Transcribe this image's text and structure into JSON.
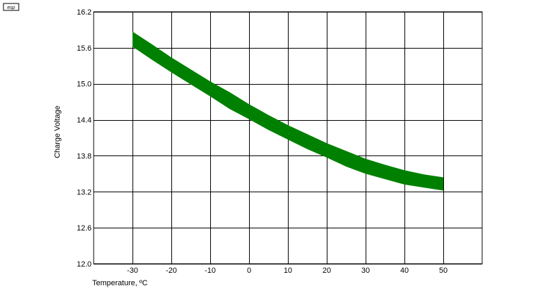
{
  "logo": {
    "text": "esp"
  },
  "chart_data": {
    "type": "area",
    "title": "",
    "xlabel": "Temperature, ºC",
    "ylabel": "Charge Voltage",
    "xlim": [
      -40,
      60
    ],
    "ylim": [
      12.0,
      16.2
    ],
    "x_ticks": [
      -30,
      -20,
      -10,
      0,
      10,
      20,
      30,
      40,
      50
    ],
    "y_ticks": [
      12.0,
      12.6,
      13.2,
      13.8,
      14.4,
      15.0,
      15.6,
      16.2
    ],
    "y_tick_labels": [
      "12.0",
      "12.6",
      "13.2",
      "13.8",
      "14.4",
      "15.0",
      "15.6",
      "16.2"
    ],
    "grid": true,
    "band_color": "#008000",
    "series": [
      {
        "x": [
          -30,
          -25,
          -20,
          -15,
          -10,
          -5,
          0,
          5,
          10,
          15,
          20,
          25,
          30,
          35,
          40,
          45,
          50
        ],
        "upper": [
          15.87,
          15.66,
          15.44,
          15.24,
          15.04,
          14.86,
          14.66,
          14.48,
          14.31,
          14.16,
          14.01,
          13.88,
          13.75,
          13.65,
          13.56,
          13.49,
          13.44
        ],
        "lower": [
          15.62,
          15.4,
          15.19,
          14.99,
          14.79,
          14.58,
          14.41,
          14.23,
          14.07,
          13.91,
          13.77,
          13.62,
          13.5,
          13.41,
          13.32,
          13.27,
          13.22
        ]
      }
    ]
  }
}
